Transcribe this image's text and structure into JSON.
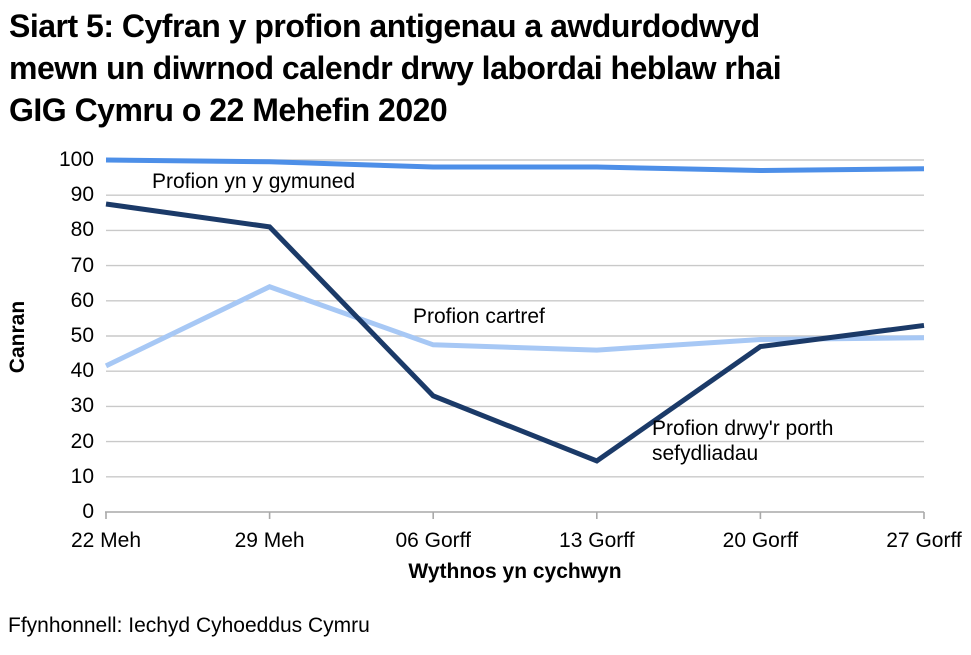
{
  "title_lines": [
    "Siart 5: Cyfran y profion antigenau a awdurdodwyd",
    "mewn un diwrnod calendr drwy labordai heblaw rhai",
    "GIG Cymru o 22 Mehefin 2020"
  ],
  "source": "Ffynhonnell: Iechyd Cyhoeddus Cymru",
  "chart_data": {
    "type": "line",
    "title": "Siart 5: Cyfran y profion antigenau a awdurdodwyd mewn un diwrnod calendr drwy labordai heblaw rhai GIG Cymru o 22 Mehefin 2020",
    "xlabel": "Wythnos yn cychwyn",
    "ylabel": "Canran",
    "categories": [
      "22 Meh",
      "29 Meh",
      "06 Gorff",
      "13 Gorff",
      "20 Gorff",
      "27 Gorff"
    ],
    "ylim": [
      0,
      100
    ],
    "yticks": [
      0,
      10,
      20,
      30,
      40,
      50,
      60,
      70,
      80,
      90,
      100
    ],
    "grid": true,
    "legend": "inline-annotations",
    "series": [
      {
        "name": "Profion yn y gymuned",
        "color": "#4D8FE8",
        "values": [
          100,
          99.5,
          98,
          98,
          97,
          97.5
        ]
      },
      {
        "name": "Profion cartref",
        "color": "#A7C8F5",
        "values": [
          41.5,
          64,
          47.5,
          46,
          49,
          49.5
        ]
      },
      {
        "name": "Profion drwy'r porth sefydliadau",
        "color": "#1B3A68",
        "values": [
          87.5,
          81,
          33,
          14.5,
          47,
          53
        ]
      }
    ],
    "colors": {
      "gridline": "#C9C9C9",
      "axis": "#A9A9A9",
      "text": "#000000",
      "background": "#FFFFFF"
    }
  }
}
